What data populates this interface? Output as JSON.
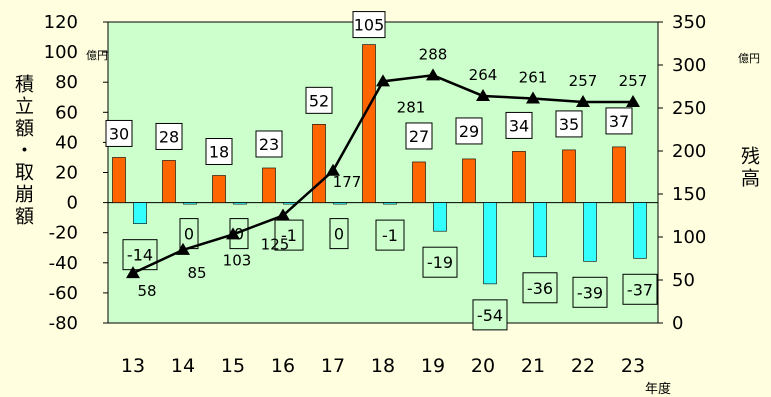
{
  "chart_data": {
    "type": "bar+line",
    "categories": [
      "13",
      "14",
      "15",
      "16",
      "17",
      "18",
      "19",
      "20",
      "21",
      "22",
      "23"
    ],
    "series": [
      {
        "type": "bar",
        "axis": "left",
        "color": "#ff6600",
        "values": [
          30,
          28,
          18,
          23,
          52,
          105,
          27,
          29,
          34,
          35,
          37
        ]
      },
      {
        "type": "bar",
        "axis": "left",
        "color": "#33ffff",
        "values": [
          -14,
          0,
          0,
          -1,
          0,
          -1,
          -19,
          -54,
          -36,
          -39,
          -37
        ]
      },
      {
        "type": "line",
        "axis": "right",
        "color": "#000000",
        "values": [
          58,
          85,
          103,
          125,
          177,
          281,
          288,
          264,
          261,
          257,
          257
        ]
      }
    ],
    "left_axis": {
      "min": -80,
      "max": 120,
      "step": 20,
      "unit": "億円",
      "label": "積立額・取崩額"
    },
    "right_axis": {
      "min": 0,
      "max": 350,
      "step": 50,
      "unit": "億円",
      "label": "残高"
    },
    "x_unit": "年度",
    "plot_background": "#ccffcc",
    "page_background": "#ffffe0"
  }
}
